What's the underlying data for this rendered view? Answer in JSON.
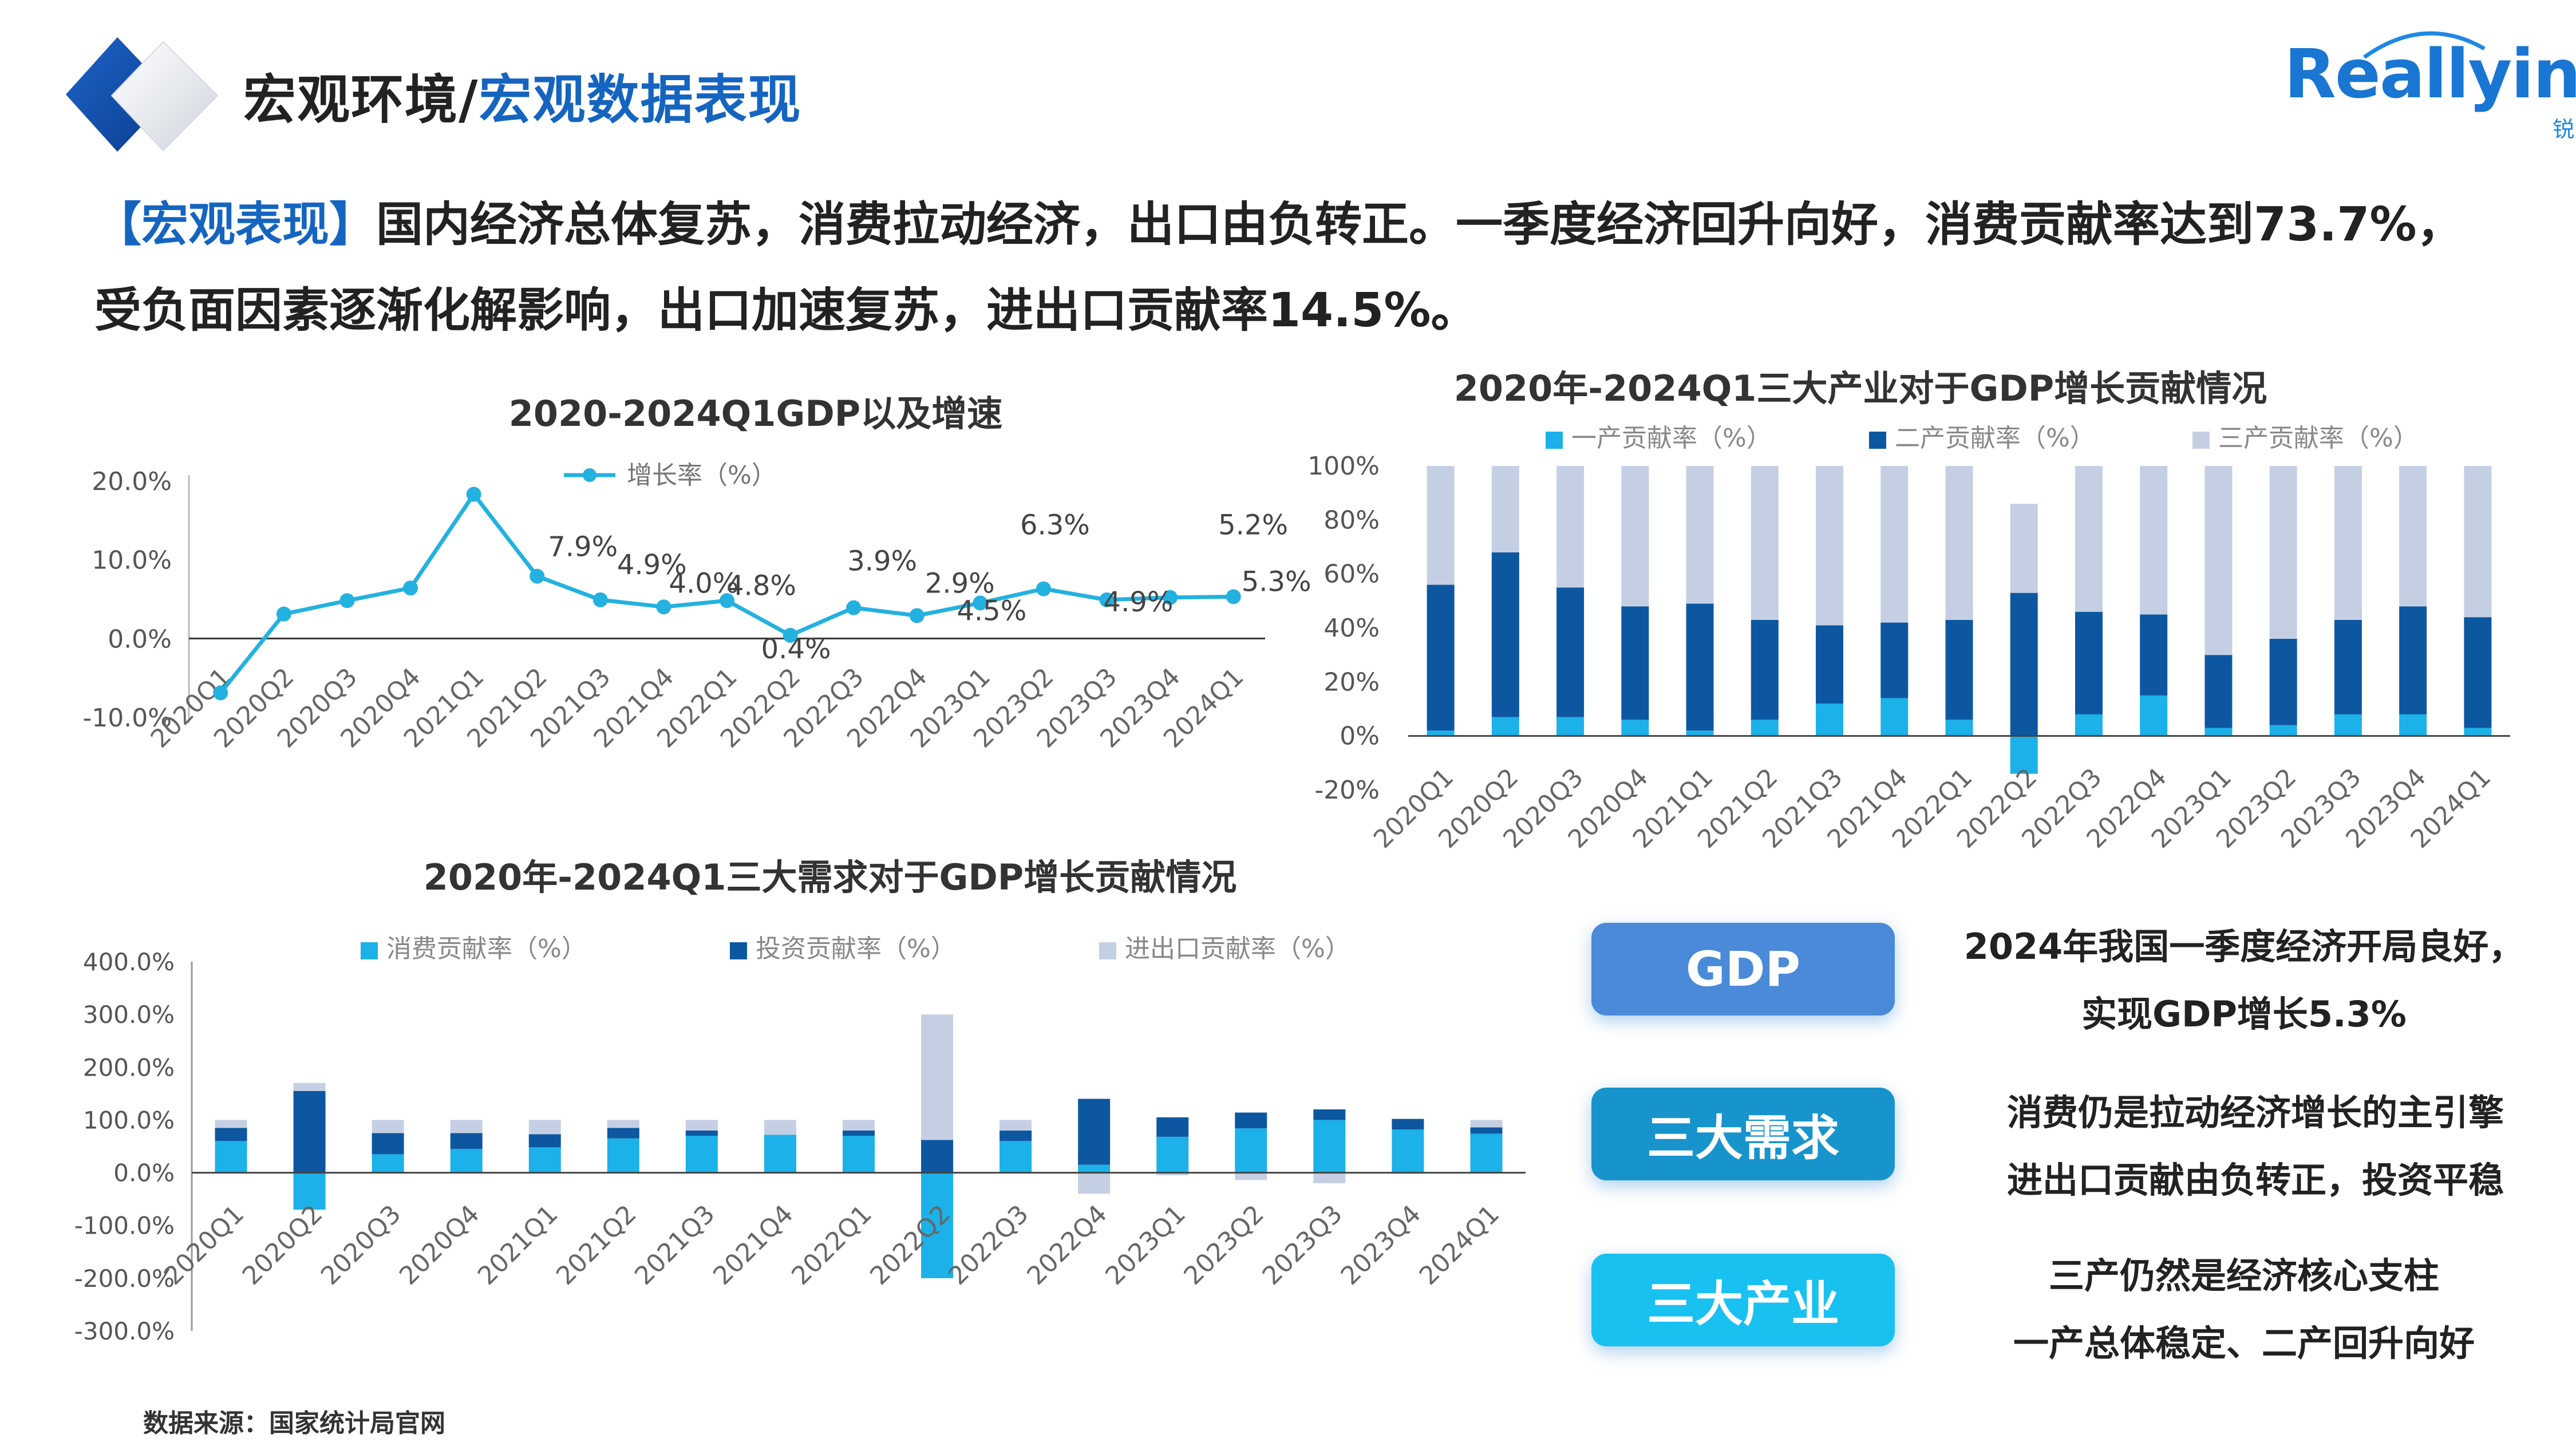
{
  "header": {
    "title_part1": "宏观环境/",
    "title_part2": "宏观数据表现"
  },
  "logo": {
    "brand": "Reallyinfo",
    "sub": "锐理数据"
  },
  "intro": {
    "tag": "【宏观表现】",
    "line1": "国内经济总体复苏，消费拉动经济，出口由负转正。一季度经济回升向好，消费贡献率达到73.7%，",
    "line2": "受负面因素逐渐化解影响，出口加速复苏，进出口贡献率14.5%。"
  },
  "colors": {
    "light_blue": "#1cb1e8",
    "dark_blue": "#0d57a1",
    "pale": "#c5cfe4",
    "line": "#23b1e0"
  },
  "chart_data": [
    {
      "type": "line",
      "title": "2020-2024Q1GDP以及增速",
      "legend": "增长率（%）",
      "categories": [
        "2020Q1",
        "2020Q2",
        "2020Q3",
        "2020Q4",
        "2021Q1",
        "2021Q2",
        "2021Q3",
        "2021Q4",
        "2022Q1",
        "2022Q2",
        "2022Q3",
        "2022Q4",
        "2023Q1",
        "2023Q2",
        "2023Q3",
        "2023Q4",
        "2024Q1"
      ],
      "values": [
        -6.9,
        3.1,
        4.8,
        6.4,
        18.3,
        7.9,
        4.9,
        4.0,
        4.8,
        0.4,
        3.9,
        2.9,
        4.5,
        6.3,
        4.9,
        5.2,
        5.3
      ],
      "data_labels": [
        "",
        "",
        "",
        "",
        "",
        "7.9%",
        "4.9%",
        "4.0%",
        "4.8%",
        "0.4%",
        "3.9%",
        "2.9%",
        "4.5%",
        "6.3%",
        "4.9%",
        "5.2%",
        "5.3%"
      ],
      "y_ticks": [
        "20.0%",
        "10.0%",
        "0.0%",
        "-10.0%"
      ],
      "ylim": [
        -10,
        20
      ]
    },
    {
      "type": "bar",
      "stacked": true,
      "title": "2020年-2024Q1三大产业对于GDP增长贡献情况",
      "categories": [
        "2020Q1",
        "2020Q2",
        "2020Q3",
        "2020Q4",
        "2021Q1",
        "2021Q2",
        "2021Q3",
        "2021Q4",
        "2022Q1",
        "2022Q2",
        "2022Q3",
        "2022Q4",
        "2023Q1",
        "2023Q2",
        "2023Q3",
        "2023Q4",
        "2024Q1"
      ],
      "series": [
        {
          "name": "一产贡献率（%）",
          "values": [
            2,
            7,
            7,
            6,
            2,
            6,
            12,
            14,
            6,
            -14,
            8,
            15,
            3,
            4,
            8,
            8,
            3
          ]
        },
        {
          "name": "二产贡献率（%）",
          "values": [
            54,
            61,
            48,
            42,
            47,
            37,
            29,
            28,
            37,
            53,
            38,
            30,
            27,
            32,
            35,
            40,
            41
          ]
        },
        {
          "name": "三产贡献率（%）",
          "values": [
            44,
            32,
            45,
            52,
            51,
            57,
            59,
            58,
            57,
            33,
            54,
            55,
            70,
            64,
            57,
            52,
            56
          ]
        }
      ],
      "y_ticks": [
        "100%",
        "80%",
        "60%",
        "40%",
        "20%",
        "0%",
        "-20%"
      ],
      "ylim": [
        -20,
        100
      ]
    },
    {
      "type": "bar",
      "stacked": true,
      "title": "2020年-2024Q1三大需求对于GDP增长贡献情况",
      "categories": [
        "2020Q1",
        "2020Q2",
        "2020Q3",
        "2020Q4",
        "2021Q1",
        "2021Q2",
        "2021Q3",
        "2021Q4",
        "2022Q1",
        "2022Q2",
        "2022Q3",
        "2022Q4",
        "2023Q1",
        "2023Q2",
        "2023Q3",
        "2023Q4",
        "2024Q1"
      ],
      "series": [
        {
          "name": "消费贡献率（%）",
          "values": [
            60,
            -70,
            35,
            45,
            48,
            65,
            70,
            72,
            70,
            -200,
            60,
            15,
            68,
            84,
            100,
            82,
            74
          ]
        },
        {
          "name": "投资贡献率（%）",
          "values": [
            25,
            155,
            40,
            30,
            25,
            20,
            10,
            0,
            10,
            62,
            20,
            125,
            37,
            30,
            20,
            20,
            12
          ]
        },
        {
          "name": "进出口贡献率（%）",
          "values": [
            15,
            15,
            25,
            25,
            27,
            15,
            20,
            28,
            20,
            238,
            20,
            -40,
            -5,
            -14,
            -20,
            -2,
            14
          ]
        }
      ],
      "y_ticks": [
        "400.0%",
        "300.0%",
        "200.0%",
        "100.0%",
        "0.0%",
        "-100.0%",
        "-200.0%",
        "-300.0%"
      ],
      "ylim": [
        -300,
        400
      ]
    }
  ],
  "summary": [
    {
      "label": "GDP",
      "line1": "2024年我国一季度经济开局良好，",
      "line2": "实现GDP增长5.3%"
    },
    {
      "label": "三大需求",
      "line1": "消费仍是拉动经济增长的主引擎",
      "line2": "进出口贡献由负转正，投资平稳"
    },
    {
      "label": "三大产业",
      "line1": "三产仍然是经济核心支柱",
      "line2": "一产总体稳定、二产回升向好"
    }
  ],
  "source": "数据来源：国家统计局官网"
}
